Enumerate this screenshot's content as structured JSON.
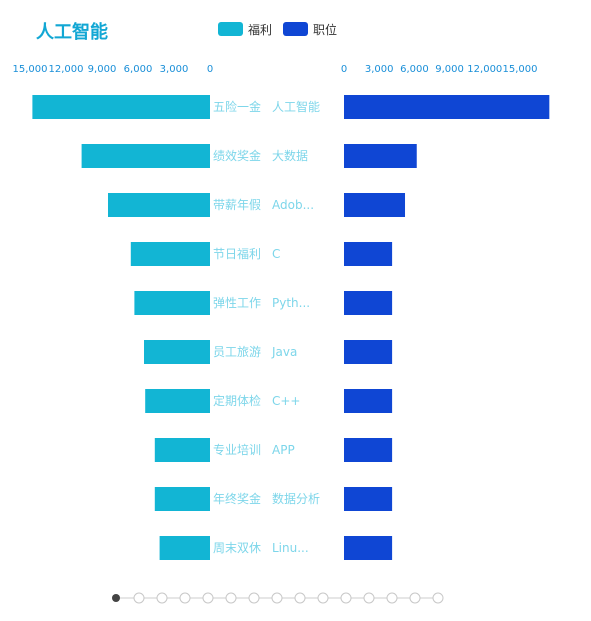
{
  "chart_data": {
    "type": "bar",
    "layout": "butterfly",
    "title": "人工智能",
    "left": {
      "name": "福利",
      "color": "#12b5d4",
      "categories": [
        "五险一金",
        "绩效奖金",
        "带薪年假",
        "节日福利",
        "弹性工作",
        "员工旅游",
        "定期体检",
        "专业培训",
        "年终奖金",
        "周末双休"
      ],
      "values": [
        14800,
        10700,
        8500,
        6600,
        6300,
        5500,
        5400,
        4600,
        4600,
        4200
      ],
      "xlim": [
        0,
        15000
      ],
      "ticks": [
        "15,000",
        "12,000",
        "9,000",
        "6,000",
        "3,000",
        "0"
      ],
      "tick_values": [
        15000,
        12000,
        9000,
        6000,
        3000,
        0
      ]
    },
    "right": {
      "name": "职位",
      "color": "#0f46d4",
      "categories": [
        "人工智能",
        "大数据",
        "Adob...",
        "C",
        "Pyth...",
        "Java",
        "C++",
        "APP",
        "数据分析",
        "Linu..."
      ],
      "values": [
        17500,
        6200,
        5200,
        4100,
        4100,
        4100,
        4100,
        4100,
        4100,
        4100
      ],
      "xlim": [
        0,
        15000
      ],
      "ticks": [
        "0",
        "3,000",
        "6,000",
        "9,000",
        "12,000",
        "15,000"
      ],
      "tick_values": [
        0,
        3000,
        6000,
        9000,
        12000,
        15000
      ]
    },
    "label_color": "#7dd6ea",
    "tick_color": "#1a8fd8",
    "title_color": "#12a7d4"
  },
  "timeline": {
    "count": 15,
    "active_index": 0
  }
}
